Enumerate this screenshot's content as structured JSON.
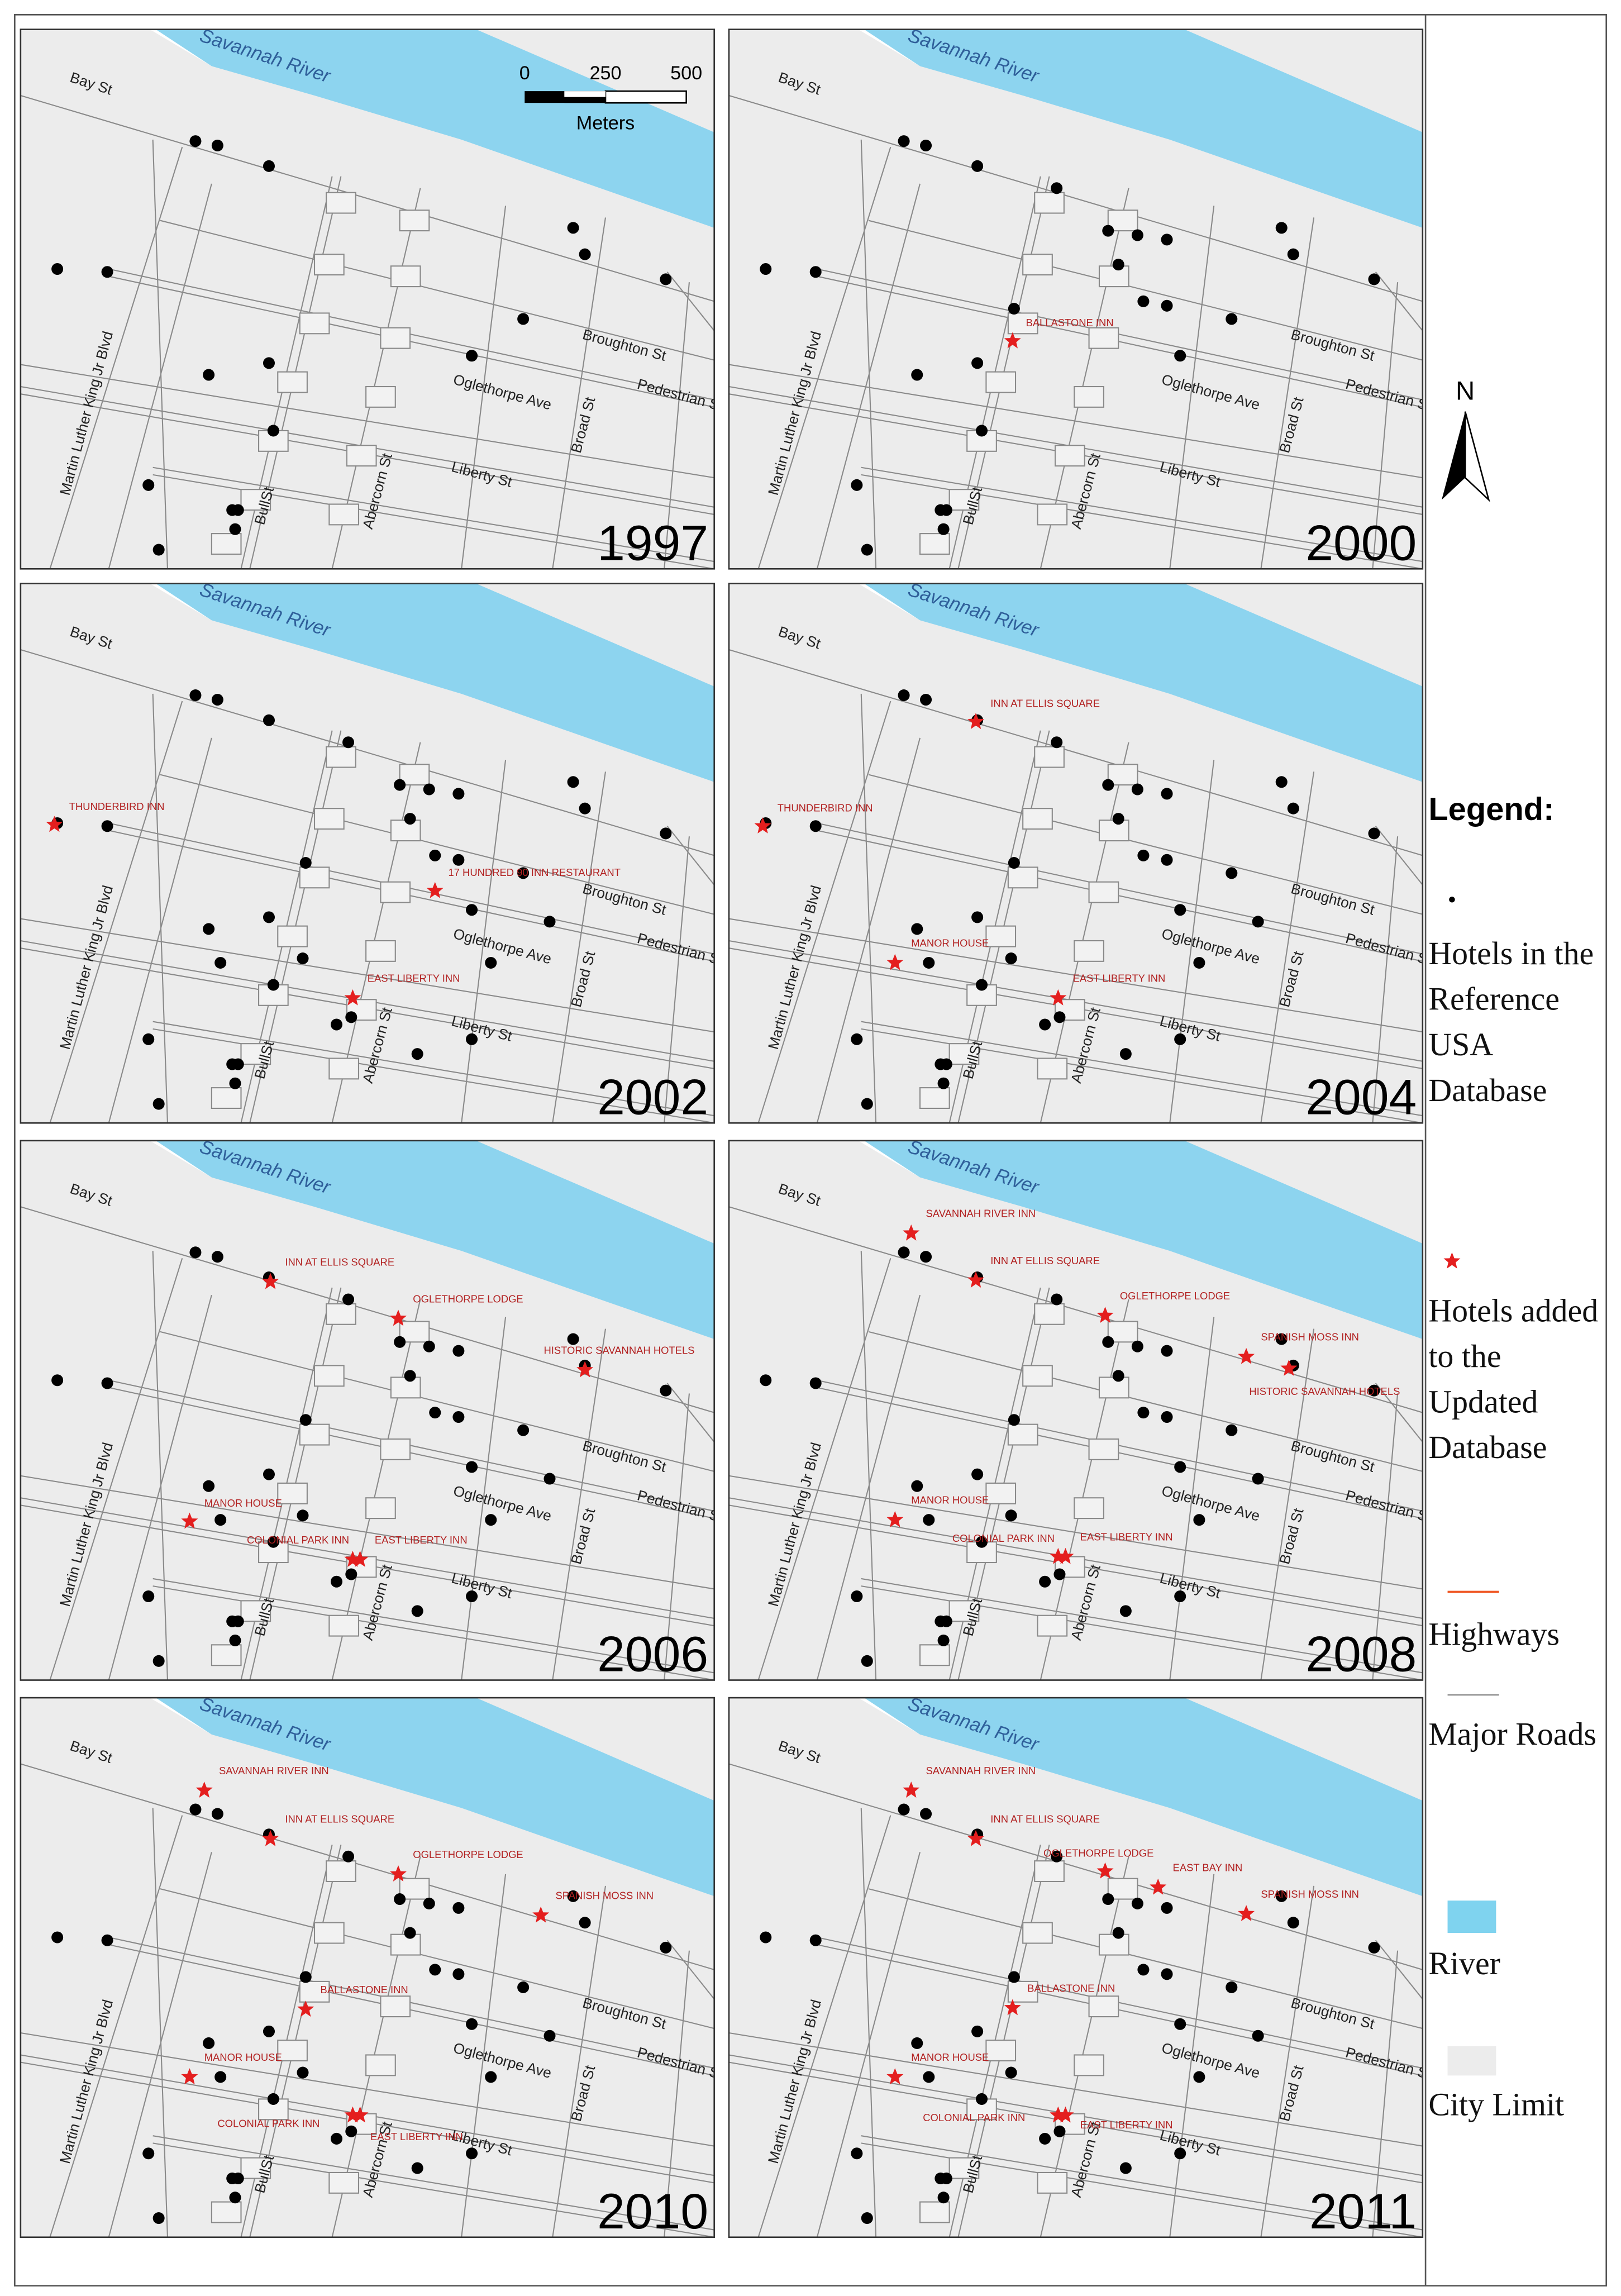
{
  "street_labels": [
    "Savannah River",
    "Bay St",
    "Broughton St",
    "Oglethorpe Ave",
    "Pedestrian St",
    "Liberty St",
    "Martin Luther King Jr Blvd",
    "BullSt",
    "Abercorn St",
    "Broad St"
  ],
  "scale_bar": {
    "ticks": [
      "0",
      "250",
      "500"
    ],
    "unit": "Meters"
  },
  "compass": "N",
  "panels": [
    {
      "year": "1997",
      "hotels_added": []
    },
    {
      "year": "2000",
      "hotels_added": [
        "BALLASTONE INN"
      ]
    },
    {
      "year": "2002",
      "hotels_added": [
        "THUNDERBIRD INN",
        "17 HUNDRED 90 INN RESTAURANT",
        "EAST LIBERTY INN"
      ]
    },
    {
      "year": "2004",
      "hotels_added": [
        "INN AT ELLIS SQUARE",
        "THUNDERBIRD INN",
        "MANOR HOUSE",
        "EAST LIBERTY INN"
      ]
    },
    {
      "year": "2006",
      "hotels_added": [
        "INN AT ELLIS SQUARE",
        "OGLETHORPE LODGE",
        "HISTORIC SAVANNAH HOTELS",
        "MANOR HOUSE",
        "COLONIAL PARK INN",
        "EAST LIBERTY INN"
      ]
    },
    {
      "year": "2008",
      "hotels_added": [
        "SAVANNAH RIVER INN",
        "INN AT ELLIS SQUARE",
        "OGLETHORPE LODGE",
        "SPANISH MOSS INN",
        "HISTORIC SAVANNAH HOTELS",
        "MANOR HOUSE",
        "COLONIAL PARK INN",
        "EAST LIBERTY INN"
      ]
    },
    {
      "year": "2010",
      "hotels_added": [
        "SAVANNAH RIVER INN",
        "INN AT ELLIS SQUARE",
        "OGLETHORPE LODGE",
        "SPANISH MOSS INN",
        "BALLASTONE INN",
        "MANOR HOUSE",
        "COLONIAL PARK INN",
        "EAST LIBERTY INN"
      ]
    },
    {
      "year": "2011",
      "hotels_added": [
        "SAVANNAH RIVER INN",
        "INN AT ELLIS SQUARE",
        "OGLETHORPE LODGE",
        "EAST BAY INN",
        "SPANISH MOSS INN",
        "BALLASTONE INN",
        "MANOR HOUSE",
        "COLONIAL PARK INN",
        "EAST LIBERTY INN"
      ]
    }
  ],
  "legend": {
    "title": "Legend:",
    "items": [
      "Hotels in the Reference USA Database",
      "Hotels added to the Updated Database",
      "Highways",
      "Major Roads",
      "River",
      "City Limit"
    ]
  }
}
